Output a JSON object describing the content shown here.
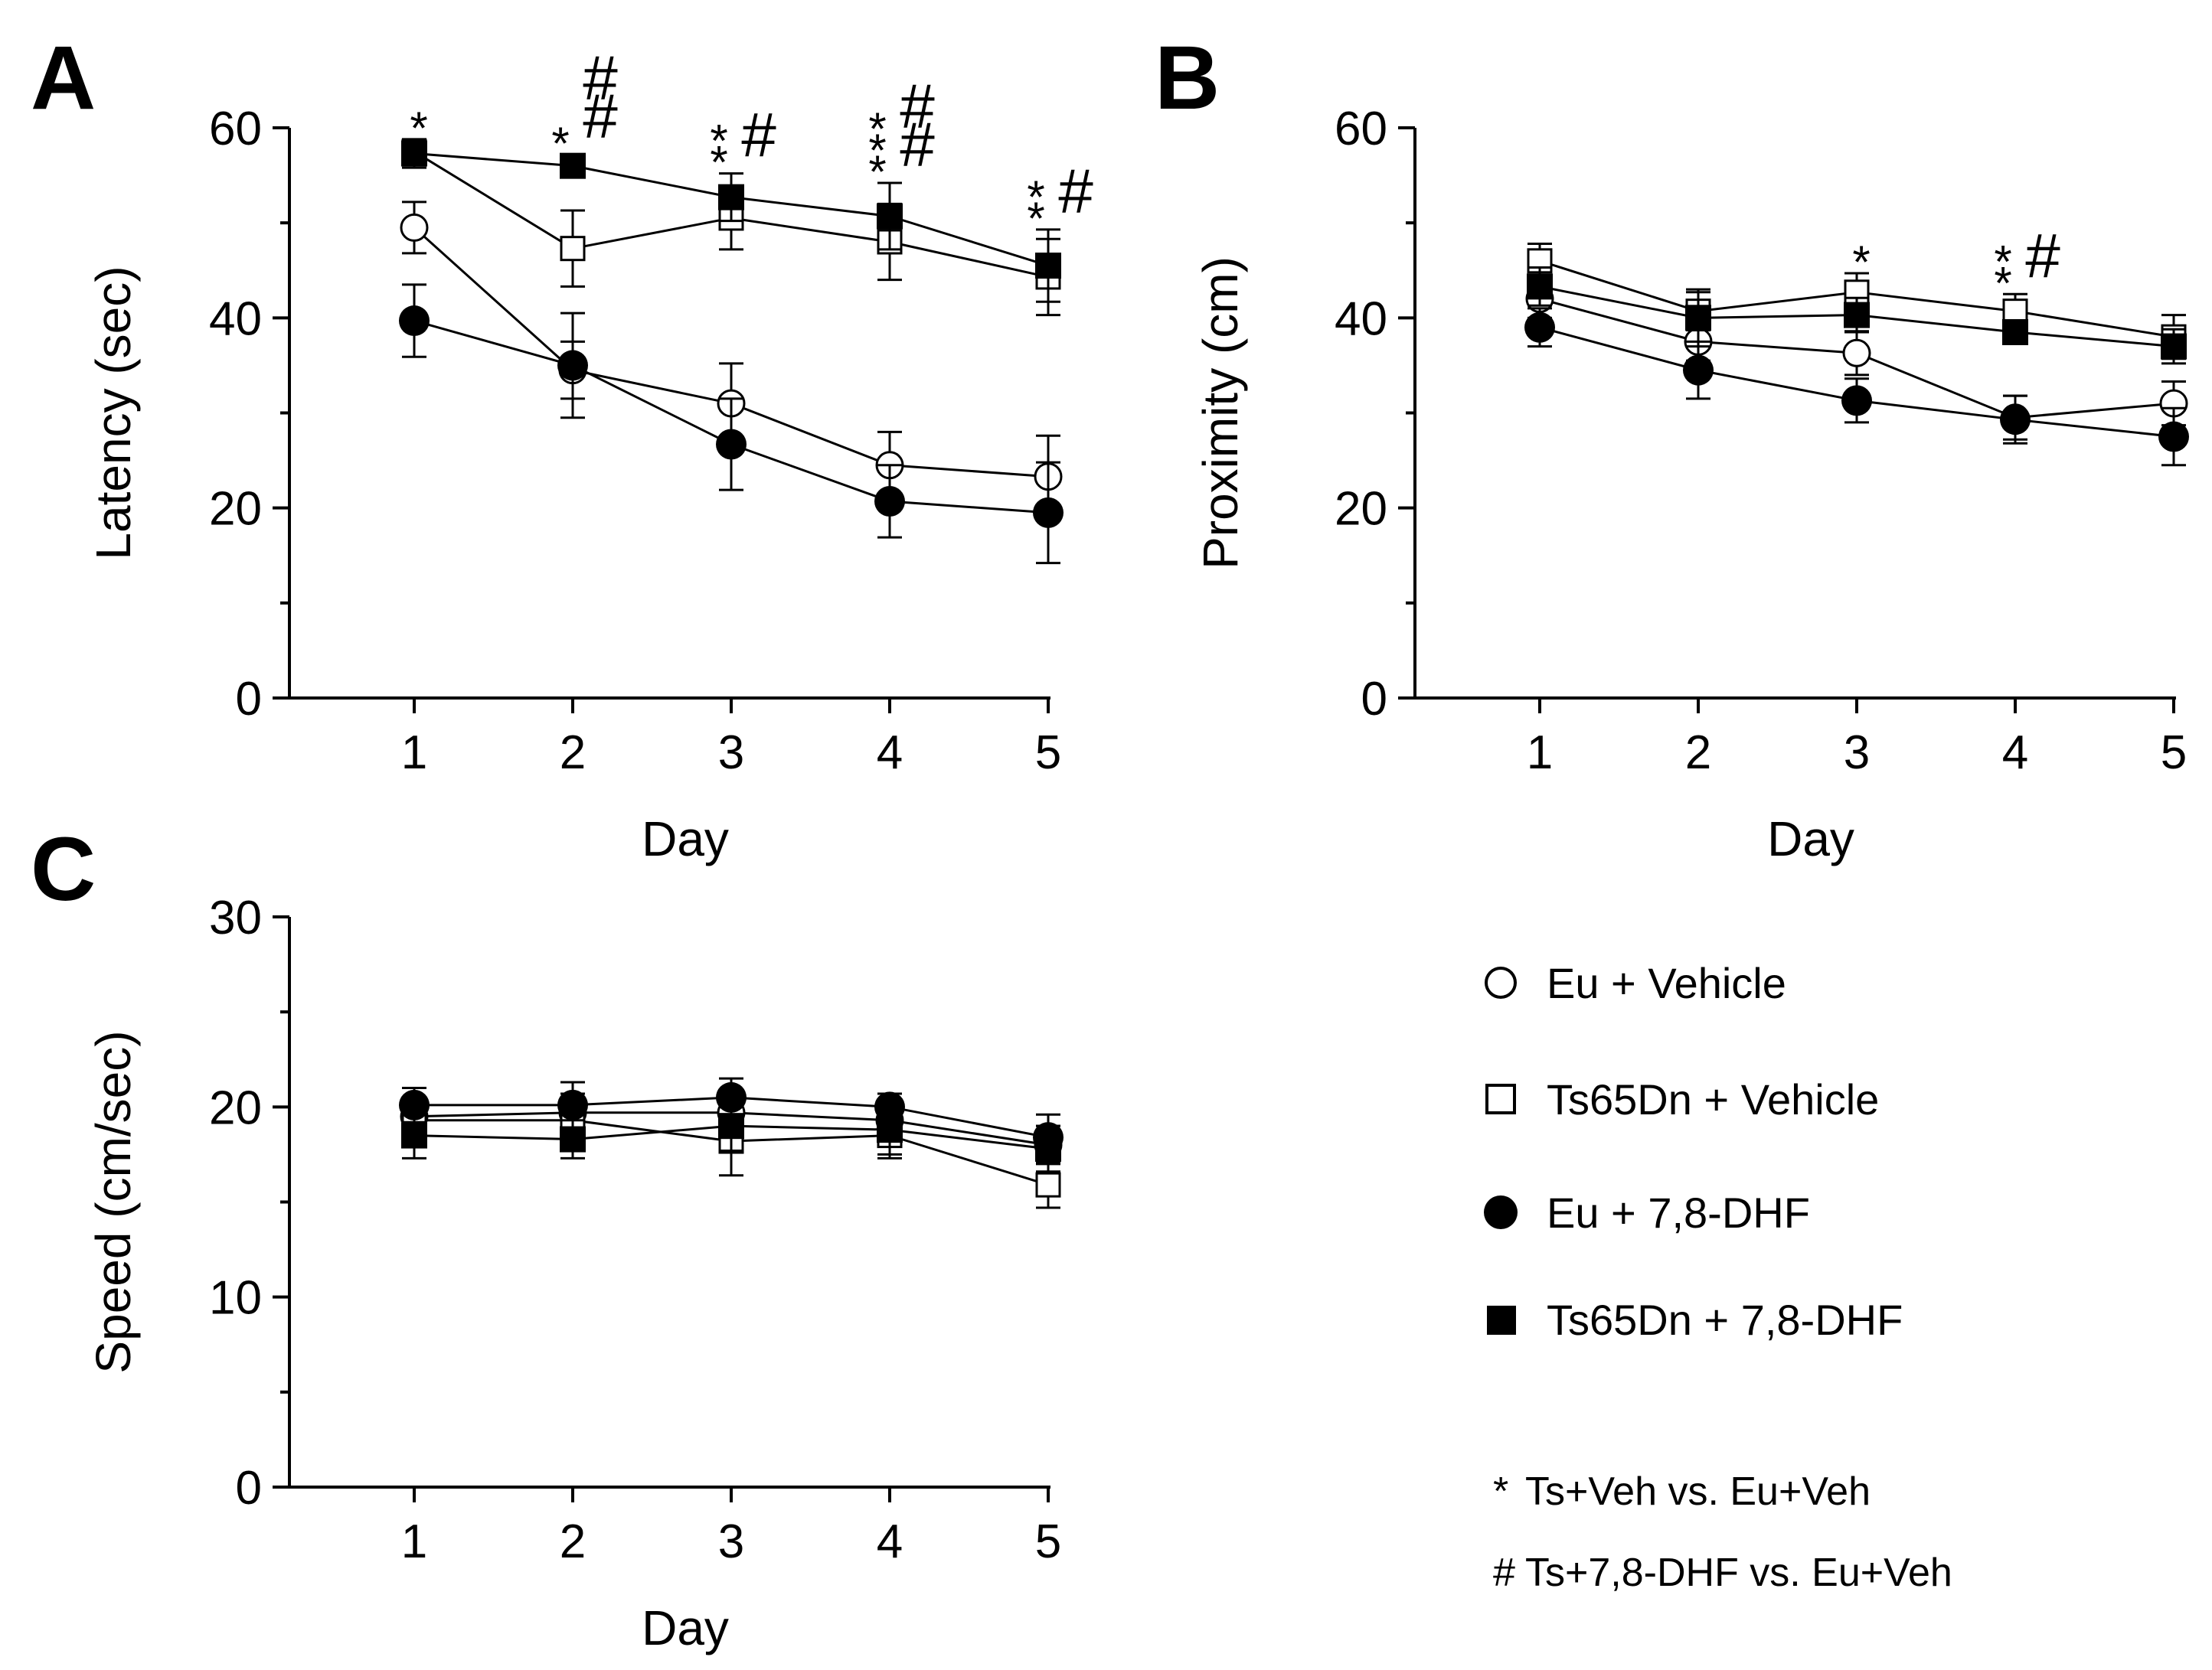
{
  "legend": [
    {
      "key": "eu_veh",
      "label": "Eu + Vehicle",
      "marker": "open-circle"
    },
    {
      "key": "ts_veh",
      "label": "Ts65Dn + Vehicle",
      "marker": "open-square"
    },
    {
      "key": "eu_dhf",
      "label": "Eu + 7,8-DHF",
      "marker": "filled-circle"
    },
    {
      "key": "ts_dhf",
      "label": "Ts65Dn + 7,8-DHF",
      "marker": "filled-square"
    }
  ],
  "notes": [
    {
      "symbol": "*",
      "text": "Ts+Veh vs. Eu+Veh"
    },
    {
      "symbol": "#",
      "text": "Ts+7,8-DHF vs. Eu+Veh"
    }
  ],
  "colors": {
    "ink": "#000000",
    "background": "#ffffff"
  },
  "chart_data": [
    {
      "panel": "A",
      "type": "line",
      "xlabel": "Day",
      "ylabel": "Latency (sec)",
      "x": [
        1,
        2,
        3,
        4,
        5
      ],
      "x_ticks": [
        "1",
        "2",
        "3",
        "4",
        "5"
      ],
      "ylim": [
        0,
        60
      ],
      "y_ticks": [
        "0",
        "20",
        "40",
        "60"
      ],
      "series": [
        {
          "key": "eu_veh",
          "values": [
            49.5,
            34.5,
            31.0,
            24.5,
            23.3
          ],
          "err": [
            2.7,
            3.0,
            4.2,
            3.5,
            4.3
          ]
        },
        {
          "key": "ts_veh",
          "values": [
            57.5,
            47.3,
            50.5,
            48.0,
            44.3
          ],
          "err": [
            1.2,
            4.0,
            3.3,
            4.0,
            4.0
          ]
        },
        {
          "key": "eu_dhf",
          "values": [
            39.7,
            35.0,
            26.7,
            20.7,
            19.5
          ],
          "err": [
            3.8,
            5.5,
            4.8,
            3.8,
            5.3
          ]
        },
        {
          "key": "ts_dhf",
          "values": [
            57.3,
            56.0,
            52.7,
            50.7,
            45.5
          ],
          "err": [
            1.5,
            1.2,
            2.5,
            3.5,
            3.8
          ]
        }
      ],
      "annotations": [
        {
          "day": 1,
          "stars": "*",
          "hashes": ""
        },
        {
          "day": 2,
          "stars": "*",
          "hashes": "##"
        },
        {
          "day": 3,
          "stars": "**",
          "hashes": "#"
        },
        {
          "day": 4,
          "stars": "***",
          "hashes": "##"
        },
        {
          "day": 5,
          "stars": "**",
          "hashes": "#"
        }
      ]
    },
    {
      "panel": "B",
      "type": "line",
      "xlabel": "Day",
      "ylabel": "Proximity (cm)",
      "x": [
        1,
        2,
        3,
        4,
        5
      ],
      "x_ticks": [
        "1",
        "2",
        "3",
        "4",
        "5"
      ],
      "ylim": [
        0,
        60
      ],
      "y_ticks": [
        "0",
        "20",
        "40",
        "60"
      ],
      "series": [
        {
          "key": "eu_veh",
          "values": [
            42.0,
            37.5,
            36.3,
            29.5,
            31.0
          ],
          "err": [
            2.0,
            2.0,
            2.3,
            2.3,
            2.3
          ]
        },
        {
          "key": "ts_veh",
          "values": [
            46.0,
            40.7,
            42.7,
            40.7,
            38.0
          ],
          "err": [
            1.8,
            2.0,
            2.0,
            1.8,
            2.3
          ]
        },
        {
          "key": "eu_dhf",
          "values": [
            39.0,
            34.5,
            31.3,
            29.3,
            27.5
          ],
          "err": [
            2.0,
            3.0,
            2.3,
            2.5,
            3.0
          ]
        },
        {
          "key": "ts_dhf",
          "values": [
            43.3,
            40.0,
            40.3,
            38.5,
            37.0
          ],
          "err": [
            2.0,
            3.0,
            1.8,
            1.2,
            1.8
          ]
        }
      ],
      "annotations": [
        {
          "day": 3,
          "stars": "*",
          "hashes": ""
        },
        {
          "day": 4,
          "stars": "**",
          "hashes": "#"
        }
      ]
    },
    {
      "panel": "C",
      "type": "line",
      "xlabel": "Day",
      "ylabel": "Speed (cm/sec)",
      "x": [
        1,
        2,
        3,
        4,
        5
      ],
      "x_ticks": [
        "1",
        "2",
        "3",
        "4",
        "5"
      ],
      "ylim": [
        0,
        30
      ],
      "y_ticks": [
        "0",
        "10",
        "20",
        "30"
      ],
      "series": [
        {
          "key": "eu_veh",
          "values": [
            19.5,
            19.7,
            19.7,
            19.3,
            18.0
          ],
          "err": [
            1.0,
            1.0,
            1.0,
            0.9,
            1.0
          ]
        },
        {
          "key": "ts_veh",
          "values": [
            19.3,
            19.3,
            18.2,
            18.5,
            15.9
          ],
          "err": [
            1.0,
            1.2,
            1.8,
            1.2,
            1.2
          ]
        },
        {
          "key": "eu_dhf",
          "values": [
            20.1,
            20.1,
            20.5,
            20.0,
            18.4
          ],
          "err": [
            0.9,
            1.2,
            1.0,
            0.7,
            1.2
          ]
        },
        {
          "key": "ts_dhf",
          "values": [
            18.5,
            18.3,
            19.0,
            18.8,
            17.8
          ],
          "err": [
            1.2,
            1.0,
            1.3,
            1.3,
            1.2
          ]
        }
      ],
      "annotations": []
    }
  ]
}
